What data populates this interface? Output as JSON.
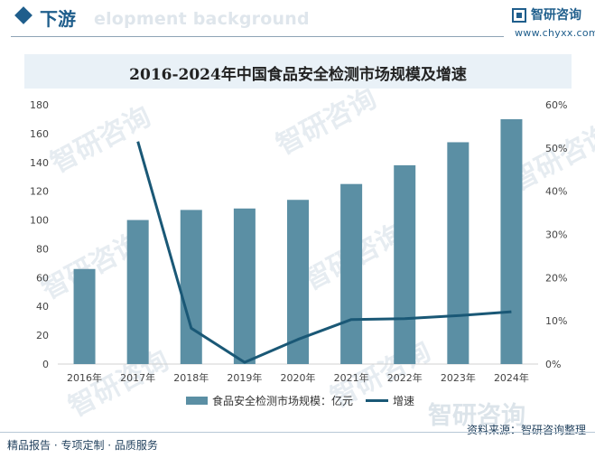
{
  "header": {
    "section_label": "下游",
    "watermark_text": "elopment background",
    "brand_name": "智研咨询",
    "brand_url": "www.chyxx.com"
  },
  "watermark": {
    "text": "智研咨询"
  },
  "footer": {
    "left_text": "精品报告 · 专项定制 · 品质服务",
    "source_text": "资料来源：智研咨询整理"
  },
  "colors": {
    "bar": "#5b8fa4",
    "line": "#1a5876",
    "title_bg": "#e9f1f7",
    "brand": "#1f5e8c"
  },
  "chart_data": {
    "type": "bar",
    "title": "2016-2024年中国食品安全检测市场规模及增速",
    "categories": [
      "2016年",
      "2017年",
      "2018年",
      "2019年",
      "2020年",
      "2021年",
      "2022年",
      "2023年",
      "2024年"
    ],
    "series": [
      {
        "name": "食品安全检测市场规模：亿元",
        "type": "bar",
        "axis": "left",
        "values": [
          66,
          100,
          107,
          108,
          114,
          125,
          138,
          154,
          170
        ]
      },
      {
        "name": "增速",
        "type": "line",
        "axis": "right",
        "unit": "%",
        "values": [
          null,
          51.5,
          8.3,
          0.4,
          5.7,
          10.3,
          10.5,
          11.2,
          12.1
        ]
      }
    ],
    "y_left": {
      "min": 0,
      "max": 180,
      "ticks": [
        "0",
        "20",
        "40",
        "60",
        "80",
        "100",
        "120",
        "140",
        "160",
        "180"
      ]
    },
    "y_right": {
      "min": 0,
      "max": 60,
      "ticks": [
        "0%",
        "10%",
        "20%",
        "30%",
        "40%",
        "50%",
        "60%"
      ]
    },
    "legend_position": "bottom",
    "grid": false
  }
}
